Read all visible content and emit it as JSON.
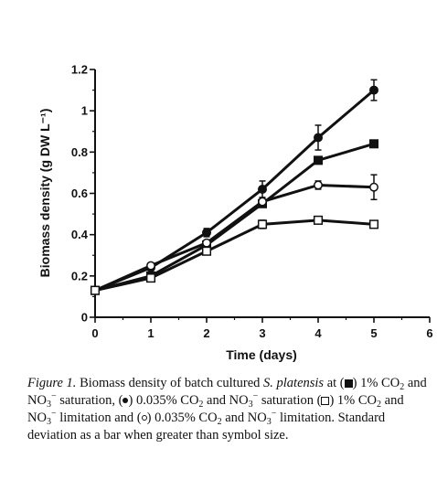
{
  "chart_data": {
    "type": "line",
    "xlabel": "Time (days)",
    "ylabel": "Biomass density (g DW L⁻¹)",
    "xlim": [
      0,
      6
    ],
    "ylim": [
      0,
      1.2
    ],
    "x_ticks": [
      "0",
      "1",
      "2",
      "3",
      "4",
      "5",
      "6"
    ],
    "y_ticks": [
      "0",
      "0.2",
      "0.4",
      "0.6",
      "0.8",
      "1",
      "1.2"
    ],
    "x_tick_values": [
      0,
      1,
      2,
      3,
      4,
      5,
      6
    ],
    "y_tick_values": [
      0,
      0.2,
      0.4,
      0.6,
      0.8,
      1.0,
      1.2
    ],
    "grid": false,
    "series": [
      {
        "marker": "filled-circle",
        "x": [
          0,
          1,
          2,
          3,
          4,
          5
        ],
        "y": [
          0.13,
          0.24,
          0.41,
          0.62,
          0.87,
          1.1
        ],
        "err": [
          0,
          0,
          0.02,
          0.04,
          0.06,
          0.05
        ]
      },
      {
        "marker": "filled-square",
        "x": [
          0,
          1,
          2,
          3,
          4,
          5
        ],
        "y": [
          0.13,
          0.2,
          0.35,
          0.55,
          0.76,
          0.84
        ],
        "err": [
          0,
          0,
          0,
          0,
          0,
          0
        ]
      },
      {
        "marker": "open-circle",
        "x": [
          0,
          1,
          2,
          3,
          4,
          5
        ],
        "y": [
          0.13,
          0.25,
          0.36,
          0.56,
          0.64,
          0.63
        ],
        "err": [
          0,
          0,
          0,
          0.02,
          0.02,
          0.06
        ]
      },
      {
        "marker": "open-square",
        "x": [
          0,
          1,
          2,
          3,
          4,
          5
        ],
        "y": [
          0.13,
          0.19,
          0.32,
          0.45,
          0.47,
          0.45
        ],
        "err": [
          0,
          0,
          0,
          0.02,
          0,
          0
        ]
      }
    ]
  },
  "caption": {
    "figure_label": "Figure 1.",
    "t1": " Biomass density of batch cultured ",
    "species": "S. platensis",
    "t2": " at (",
    "t3": ") 1% CO",
    "sub2": "2",
    "t4": " and NO",
    "sub3": "3",
    "minus": "−",
    "t5": " saturation, (",
    "t6": ") 0.035% CO",
    "t7": " and NO",
    "t8": " saturation (",
    "t9": ") 1% CO",
    "t10": " and NO",
    "t11": " limitation and (",
    "t12": ") 0.035% CO",
    "t13": " and NO",
    "t14": " limitation. Standard deviation as a bar when greater than symbol size."
  }
}
